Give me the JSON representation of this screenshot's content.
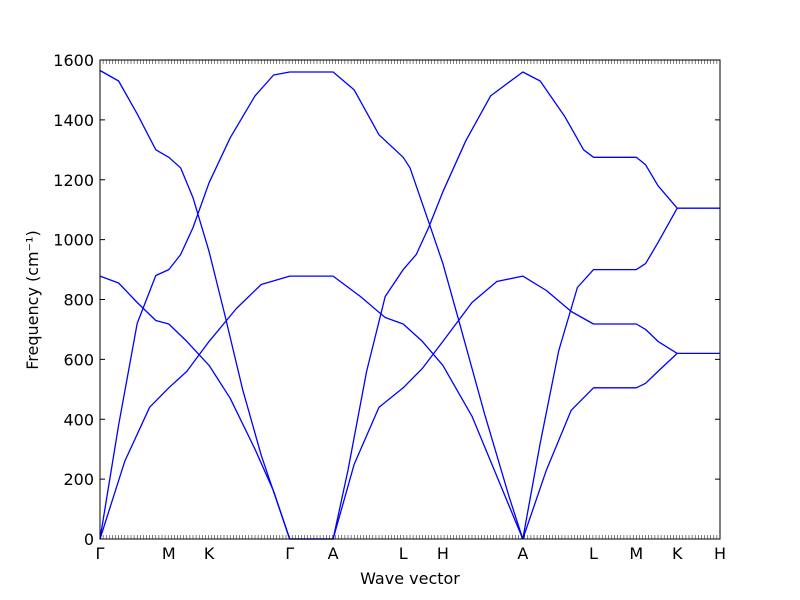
{
  "chart_data": {
    "type": "line",
    "xlabel": "Wave vector",
    "ylabel": "Frequency (cm⁻¹)",
    "ylim": [
      0,
      1600
    ],
    "yticks": [
      0,
      200,
      400,
      600,
      800,
      1000,
      1200,
      1400,
      1600
    ],
    "grid": false,
    "line_color": "#0000ff",
    "high_symmetry_points": [
      {
        "label": "Γ",
        "x": 0.0
      },
      {
        "label": "M",
        "x": 0.111
      },
      {
        "label": "K",
        "x": 0.176
      },
      {
        "label": "Γ",
        "x": 0.306
      },
      {
        "label": "A",
        "x": 0.376
      },
      {
        "label": "L",
        "x": 0.489
      },
      {
        "label": "H",
        "x": 0.553
      },
      {
        "label": "A",
        "x": 0.682
      },
      {
        "label": "L",
        "x": 0.796
      },
      {
        "label": "M",
        "x": 0.865
      },
      {
        "label": "K",
        "x": 0.931
      },
      {
        "label": "H",
        "x": 1.0
      }
    ],
    "series": [
      {
        "values": [
          [
            0.0,
            0
          ],
          [
            0.03,
            380
          ],
          [
            0.06,
            720
          ],
          [
            0.09,
            880
          ],
          [
            0.111,
            900
          ],
          [
            0.13,
            950
          ],
          [
            0.15,
            1040
          ],
          [
            0.176,
            1190
          ],
          [
            0.21,
            1340
          ],
          [
            0.25,
            1480
          ],
          [
            0.28,
            1550
          ],
          [
            0.306,
            1560
          ],
          [
            0.376,
            1560
          ],
          [
            0.41,
            1500
          ],
          [
            0.45,
            1350
          ],
          [
            0.489,
            1275
          ],
          [
            0.5,
            1240
          ],
          [
            0.53,
            1060
          ],
          [
            0.553,
            920
          ],
          [
            0.58,
            720
          ],
          [
            0.62,
            420
          ],
          [
            0.66,
            140
          ],
          [
            0.682,
            0
          ]
        ]
      },
      {
        "values": [
          [
            0.0,
            0
          ],
          [
            0.04,
            260
          ],
          [
            0.08,
            440
          ],
          [
            0.111,
            505
          ],
          [
            0.14,
            560
          ],
          [
            0.176,
            660
          ],
          [
            0.22,
            770
          ],
          [
            0.26,
            850
          ],
          [
            0.306,
            878
          ],
          [
            0.376,
            878
          ],
          [
            0.42,
            810
          ],
          [
            0.46,
            740
          ],
          [
            0.489,
            718
          ],
          [
            0.52,
            660
          ],
          [
            0.553,
            580
          ],
          [
            0.6,
            410
          ],
          [
            0.64,
            210
          ],
          [
            0.682,
            0
          ]
        ]
      },
      {
        "values": [
          [
            0.0,
            1565
          ],
          [
            0.03,
            1530
          ],
          [
            0.06,
            1420
          ],
          [
            0.09,
            1300
          ],
          [
            0.111,
            1275
          ],
          [
            0.13,
            1240
          ],
          [
            0.15,
            1140
          ],
          [
            0.176,
            960
          ],
          [
            0.2,
            760
          ],
          [
            0.23,
            500
          ],
          [
            0.26,
            280
          ],
          [
            0.306,
            0
          ],
          [
            0.376,
            0
          ],
          [
            0.4,
            230
          ],
          [
            0.43,
            560
          ],
          [
            0.46,
            810
          ],
          [
            0.489,
            900
          ],
          [
            0.51,
            950
          ],
          [
            0.53,
            1040
          ],
          [
            0.553,
            1160
          ],
          [
            0.59,
            1330
          ],
          [
            0.63,
            1480
          ],
          [
            0.682,
            1560
          ],
          [
            0.71,
            1530
          ],
          [
            0.75,
            1410
          ],
          [
            0.78,
            1300
          ],
          [
            0.796,
            1275
          ],
          [
            0.865,
            1275
          ],
          [
            0.88,
            1250
          ],
          [
            0.9,
            1180
          ],
          [
            0.931,
            1105
          ],
          [
            1.0,
            1105
          ]
        ]
      },
      {
        "values": [
          [
            0.0,
            878
          ],
          [
            0.03,
            855
          ],
          [
            0.06,
            790
          ],
          [
            0.09,
            730
          ],
          [
            0.111,
            718
          ],
          [
            0.14,
            660
          ],
          [
            0.176,
            580
          ],
          [
            0.21,
            470
          ],
          [
            0.25,
            300
          ],
          [
            0.28,
            160
          ],
          [
            0.306,
            0
          ],
          [
            0.376,
            0
          ],
          [
            0.41,
            250
          ],
          [
            0.45,
            440
          ],
          [
            0.489,
            505
          ],
          [
            0.52,
            570
          ],
          [
            0.553,
            660
          ],
          [
            0.6,
            790
          ],
          [
            0.64,
            860
          ],
          [
            0.682,
            878
          ],
          [
            0.72,
            830
          ],
          [
            0.76,
            760
          ],
          [
            0.796,
            718
          ],
          [
            0.865,
            718
          ],
          [
            0.88,
            700
          ],
          [
            0.9,
            660
          ],
          [
            0.931,
            620
          ],
          [
            1.0,
            620
          ]
        ]
      },
      {
        "values": [
          [
            0.682,
            0
          ],
          [
            0.71,
            320
          ],
          [
            0.74,
            630
          ],
          [
            0.77,
            840
          ],
          [
            0.796,
            900
          ],
          [
            0.865,
            900
          ],
          [
            0.88,
            920
          ],
          [
            0.9,
            990
          ],
          [
            0.931,
            1105
          ]
        ]
      },
      {
        "values": [
          [
            0.682,
            0
          ],
          [
            0.72,
            230
          ],
          [
            0.76,
            430
          ],
          [
            0.796,
            505
          ],
          [
            0.865,
            505
          ],
          [
            0.88,
            520
          ],
          [
            0.9,
            560
          ],
          [
            0.931,
            620
          ]
        ]
      }
    ]
  }
}
